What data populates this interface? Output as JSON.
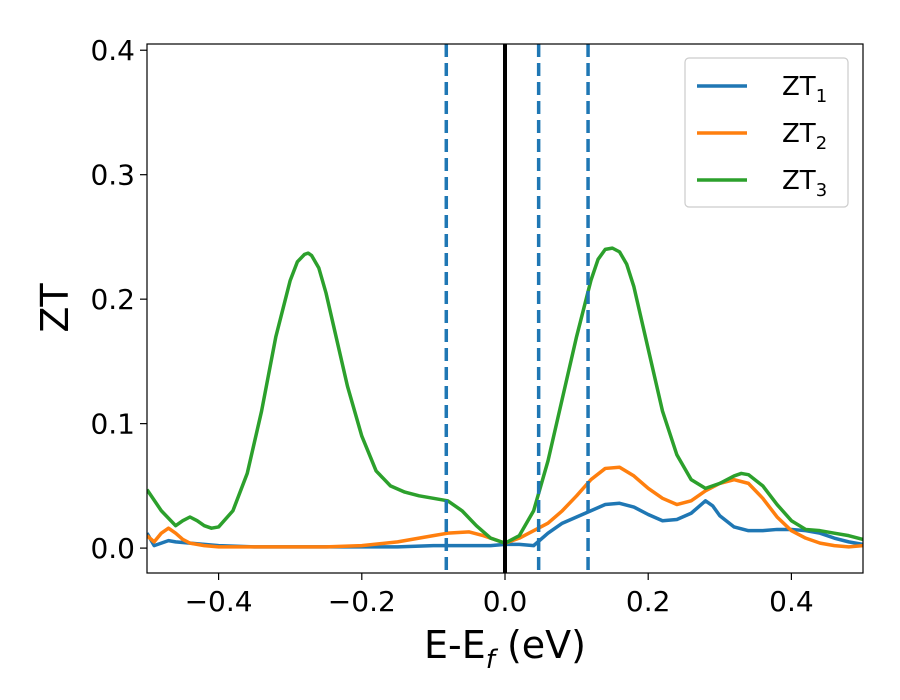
{
  "chart_data": {
    "type": "line",
    "title": "",
    "xlabel": "E-E",
    "xlabel_sub": "f",
    "xlabel_suffix": " (eV)",
    "ylabel": "ZT",
    "xlim": [
      -0.5,
      0.5
    ],
    "ylim": [
      -0.02,
      0.405
    ],
    "xticks": [
      -0.4,
      -0.2,
      0.0,
      0.2,
      0.4
    ],
    "xtick_labels": [
      "−0.4",
      "−0.2",
      "0.0",
      "0.2",
      "0.4"
    ],
    "yticks": [
      0.0,
      0.1,
      0.2,
      0.3,
      0.4
    ],
    "ytick_labels": [
      "0.0",
      "0.1",
      "0.2",
      "0.3",
      "0.4"
    ],
    "grid": false,
    "legend_position": "top-right",
    "vlines": [
      {
        "x": 0.0,
        "style": "solid",
        "color": "#000000"
      },
      {
        "x": -0.082,
        "style": "dashed",
        "color": "#1f77b4"
      },
      {
        "x": 0.047,
        "style": "dashed",
        "color": "#1f77b4"
      },
      {
        "x": 0.116,
        "style": "dashed",
        "color": "#1f77b4"
      }
    ],
    "series": [
      {
        "name": "ZT",
        "name_sub": "1",
        "color": "#1f77b4",
        "x": [
          -0.5,
          -0.49,
          -0.48,
          -0.47,
          -0.46,
          -0.44,
          -0.4,
          -0.35,
          -0.3,
          -0.25,
          -0.2,
          -0.15,
          -0.1,
          -0.05,
          -0.02,
          0.0,
          0.02,
          0.04,
          0.06,
          0.08,
          0.1,
          0.12,
          0.14,
          0.16,
          0.18,
          0.2,
          0.22,
          0.24,
          0.26,
          0.27,
          0.28,
          0.29,
          0.3,
          0.32,
          0.34,
          0.36,
          0.38,
          0.4,
          0.42,
          0.44,
          0.46,
          0.48,
          0.5
        ],
        "y": [
          0.012,
          0.002,
          0.004,
          0.006,
          0.005,
          0.004,
          0.002,
          0.001,
          0.001,
          0.001,
          0.001,
          0.001,
          0.002,
          0.002,
          0.002,
          0.003,
          0.003,
          0.002,
          0.012,
          0.02,
          0.025,
          0.03,
          0.035,
          0.036,
          0.033,
          0.027,
          0.022,
          0.023,
          0.028,
          0.033,
          0.038,
          0.034,
          0.026,
          0.017,
          0.014,
          0.014,
          0.015,
          0.015,
          0.014,
          0.012,
          0.008,
          0.005,
          0.003
        ]
      },
      {
        "name": "ZT",
        "name_sub": "2",
        "color": "#ff7f0e",
        "x": [
          -0.5,
          -0.49,
          -0.48,
          -0.47,
          -0.46,
          -0.45,
          -0.44,
          -0.42,
          -0.4,
          -0.35,
          -0.3,
          -0.25,
          -0.2,
          -0.15,
          -0.1,
          -0.08,
          -0.05,
          -0.03,
          -0.01,
          0.0,
          0.02,
          0.04,
          0.06,
          0.08,
          0.1,
          0.12,
          0.14,
          0.16,
          0.18,
          0.2,
          0.22,
          0.24,
          0.26,
          0.28,
          0.3,
          0.32,
          0.34,
          0.36,
          0.38,
          0.4,
          0.42,
          0.44,
          0.46,
          0.48,
          0.5
        ],
        "y": [
          0.01,
          0.005,
          0.012,
          0.016,
          0.012,
          0.007,
          0.004,
          0.002,
          0.001,
          0.001,
          0.001,
          0.001,
          0.002,
          0.005,
          0.01,
          0.012,
          0.013,
          0.01,
          0.006,
          0.004,
          0.008,
          0.014,
          0.02,
          0.03,
          0.042,
          0.055,
          0.064,
          0.065,
          0.058,
          0.048,
          0.04,
          0.035,
          0.038,
          0.046,
          0.052,
          0.055,
          0.052,
          0.04,
          0.025,
          0.014,
          0.008,
          0.004,
          0.002,
          0.001,
          0.002
        ]
      },
      {
        "name": "ZT",
        "name_sub": "3",
        "color": "#2ca02c",
        "x": [
          -0.5,
          -0.48,
          -0.46,
          -0.45,
          -0.44,
          -0.43,
          -0.42,
          -0.41,
          -0.4,
          -0.38,
          -0.36,
          -0.34,
          -0.32,
          -0.3,
          -0.29,
          -0.28,
          -0.275,
          -0.27,
          -0.26,
          -0.25,
          -0.24,
          -0.22,
          -0.2,
          -0.18,
          -0.16,
          -0.14,
          -0.12,
          -0.1,
          -0.08,
          -0.06,
          -0.04,
          -0.02,
          0.0,
          0.02,
          0.04,
          0.06,
          0.08,
          0.1,
          0.12,
          0.13,
          0.14,
          0.15,
          0.16,
          0.17,
          0.18,
          0.2,
          0.22,
          0.24,
          0.26,
          0.28,
          0.3,
          0.32,
          0.33,
          0.34,
          0.36,
          0.38,
          0.4,
          0.42,
          0.44,
          0.46,
          0.48,
          0.5
        ],
        "y": [
          0.047,
          0.03,
          0.018,
          0.022,
          0.025,
          0.022,
          0.018,
          0.016,
          0.017,
          0.03,
          0.06,
          0.11,
          0.17,
          0.215,
          0.23,
          0.236,
          0.237,
          0.235,
          0.225,
          0.205,
          0.18,
          0.13,
          0.09,
          0.062,
          0.05,
          0.045,
          0.042,
          0.04,
          0.038,
          0.03,
          0.018,
          0.008,
          0.004,
          0.01,
          0.03,
          0.07,
          0.12,
          0.17,
          0.215,
          0.232,
          0.24,
          0.241,
          0.238,
          0.228,
          0.21,
          0.16,
          0.11,
          0.075,
          0.055,
          0.048,
          0.052,
          0.058,
          0.06,
          0.059,
          0.05,
          0.035,
          0.022,
          0.015,
          0.014,
          0.012,
          0.01,
          0.007
        ]
      }
    ]
  }
}
